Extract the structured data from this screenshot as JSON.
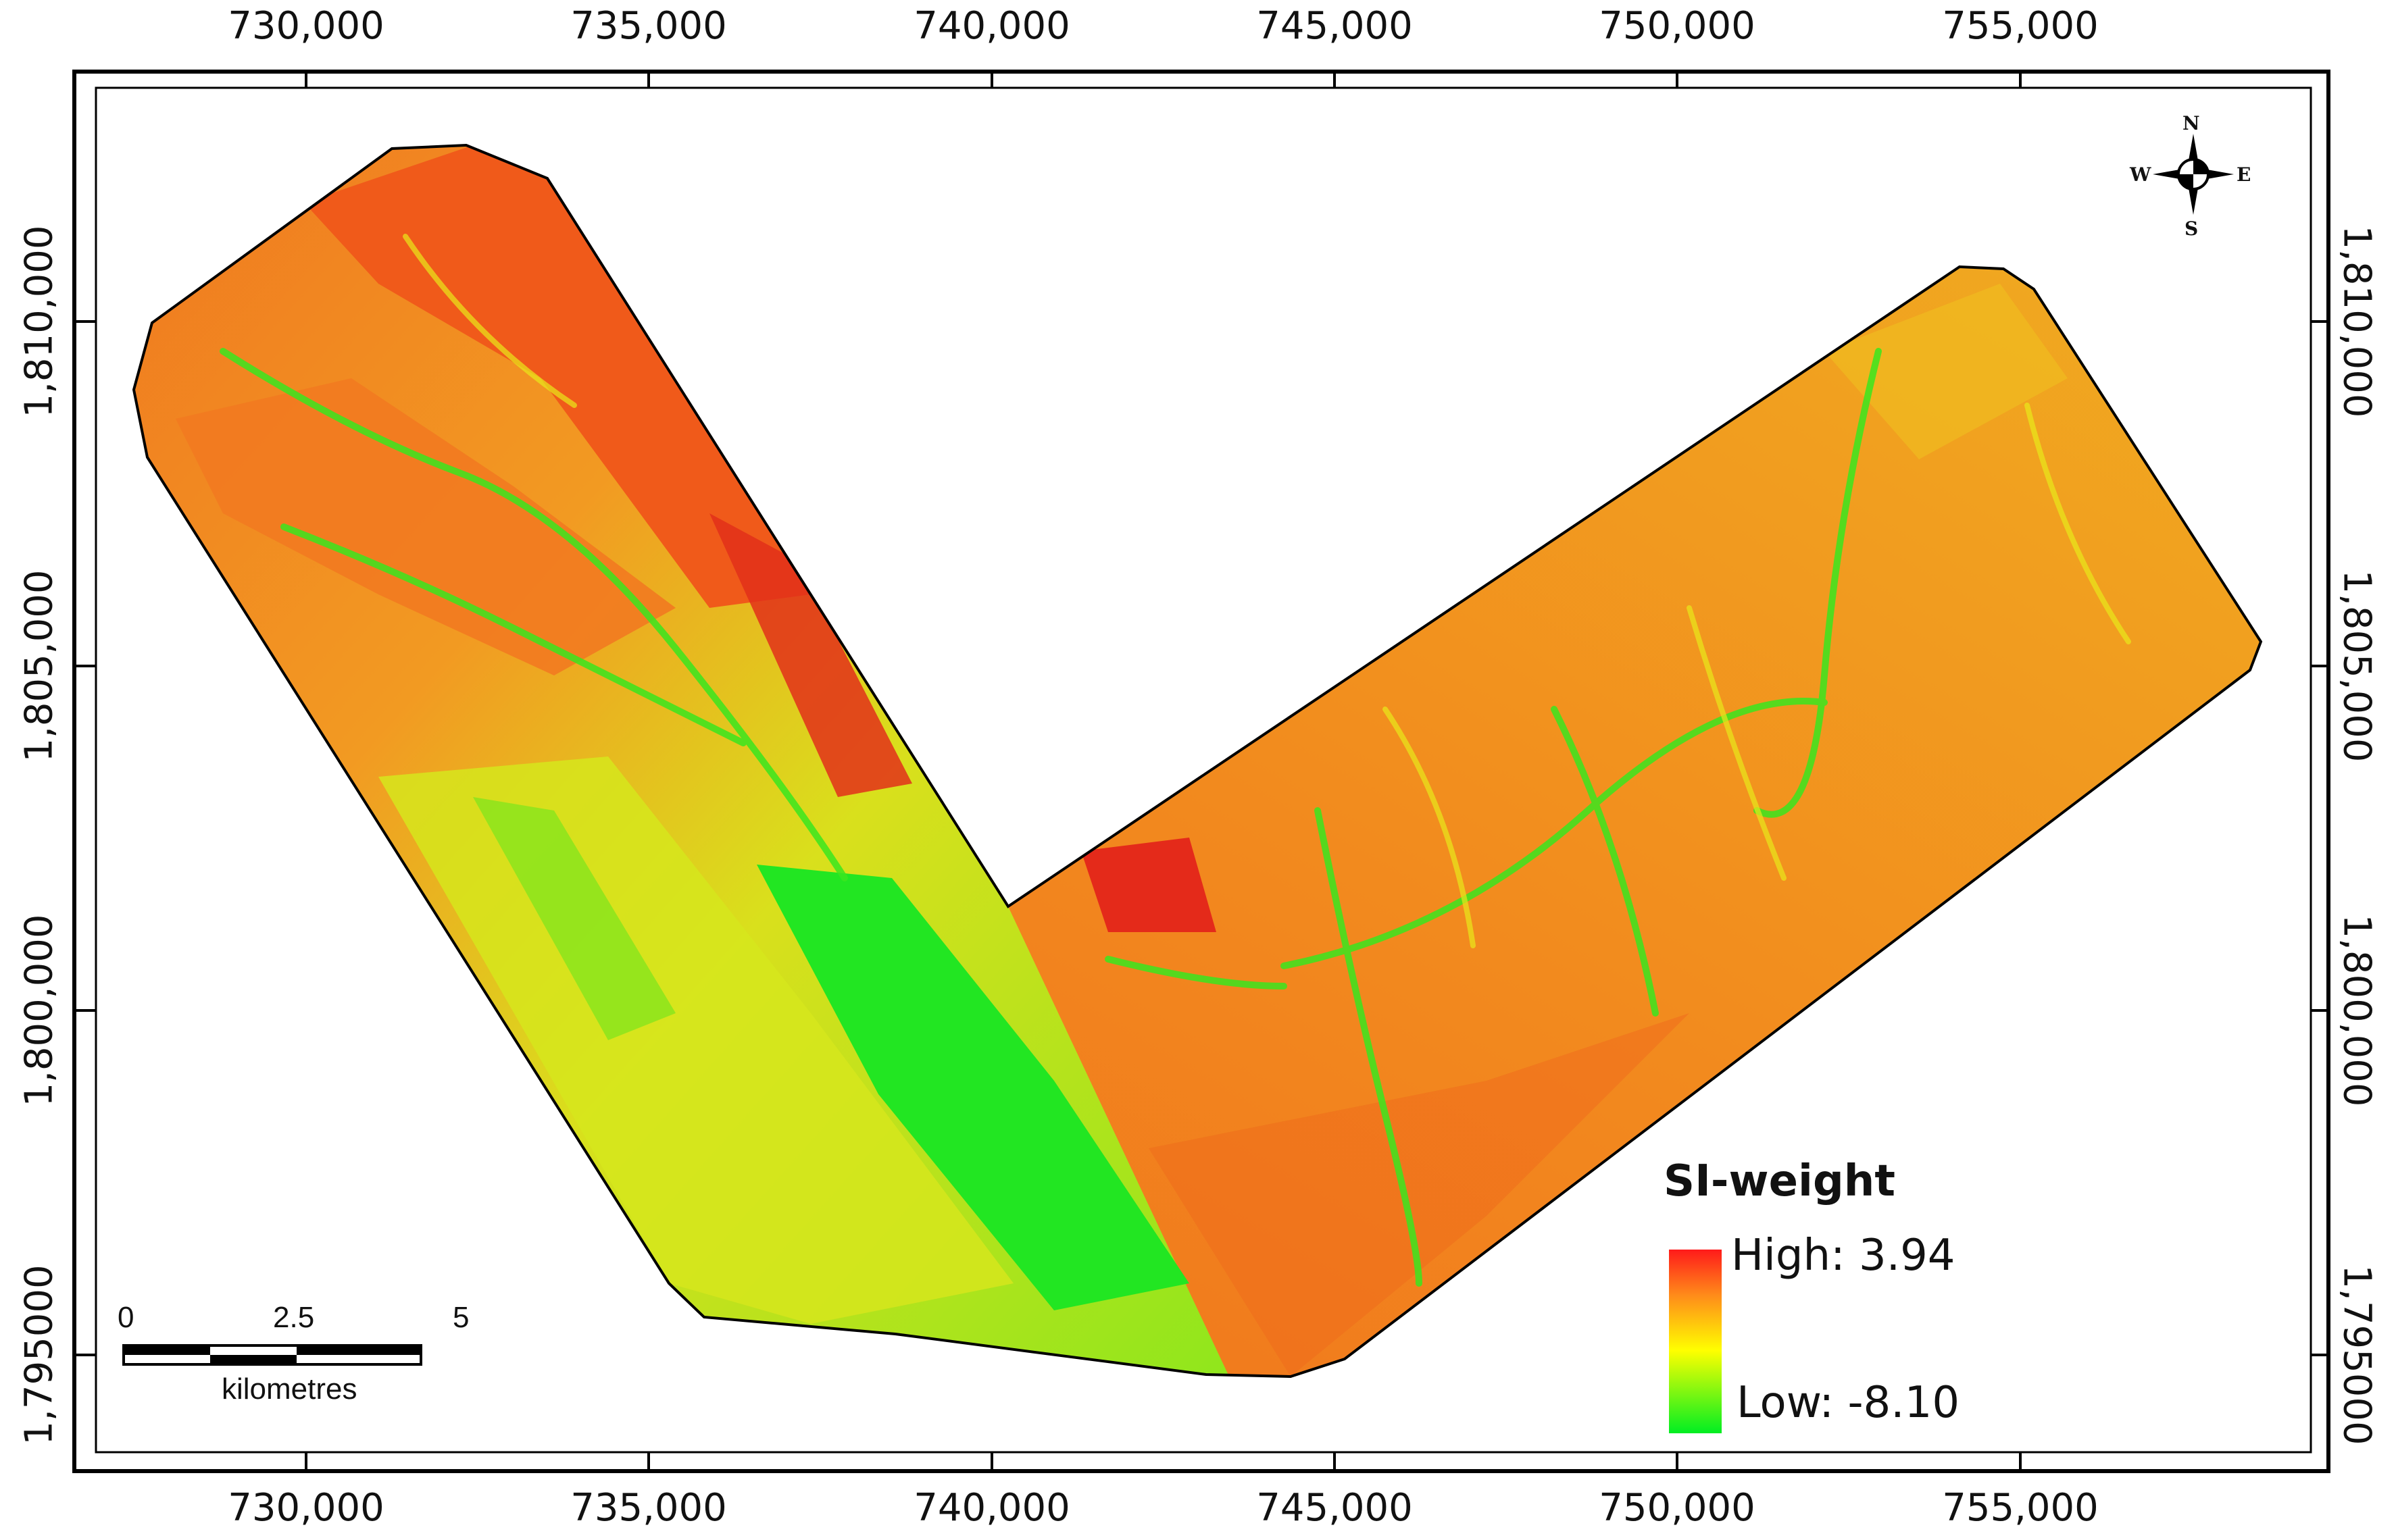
{
  "map": {
    "x_ticks": [
      "730,000",
      "735,000",
      "740,000",
      "745,000",
      "750,000",
      "755,000"
    ],
    "y_ticks": [
      "1,810,000",
      "1,805,000",
      "1,800,000",
      "1,795000"
    ],
    "y_ticks_right": [
      "1,810,000",
      "1,805,000",
      "1,800,000",
      "1,795000"
    ]
  },
  "legend": {
    "title": "SI-weight",
    "high_label": "High: 3.94",
    "low_label": "Low: -8.10",
    "colors": {
      "high": "#ff1a1a",
      "mid": "#ffff00",
      "low": "#00ee22"
    }
  },
  "scalebar": {
    "labels": [
      "0",
      "2.5",
      "5"
    ],
    "unit": "kilometres"
  },
  "north_arrow": {
    "n": "N",
    "s": "S",
    "e": "E",
    "w": "W",
    "icon": "compass-rose-icon"
  },
  "colors": {
    "red": "#e8351a",
    "orange": "#f27a1a",
    "yellow": "#e8e81a",
    "green": "#1ee61e"
  }
}
